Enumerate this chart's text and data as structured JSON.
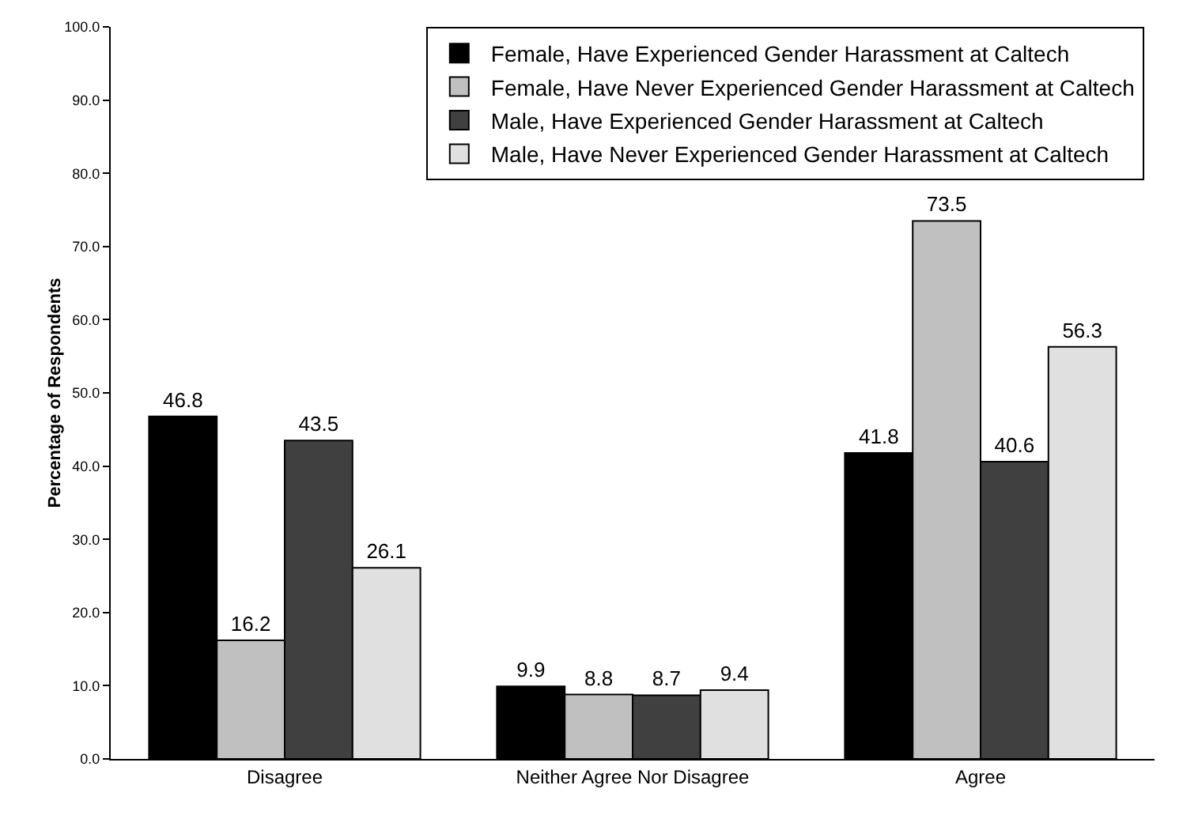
{
  "chart_data": {
    "type": "bar",
    "ylabel": "Percentage of Respondents",
    "categories": [
      "Disagree",
      "Neither Agree Nor Disagree",
      "Agree"
    ],
    "series": [
      {
        "name": "Female, Have Experienced Gender Harassment at Caltech",
        "color": "#000000",
        "values": [
          46.8,
          9.9,
          41.8
        ]
      },
      {
        "name": "Female, Have Never Experienced Gender Harassment at Caltech",
        "color": "#c0c0c0",
        "values": [
          16.2,
          8.8,
          73.5
        ]
      },
      {
        "name": "Male, Have Experienced Gender Harassment at Caltech",
        "color": "#404040",
        "values": [
          43.5,
          8.7,
          40.6
        ]
      },
      {
        "name": "Male, Have Never Experienced Gender Harassment at Caltech",
        "color": "#e0e0e0",
        "values": [
          26.1,
          9.4,
          56.3
        ]
      }
    ],
    "ylim": [
      0,
      100
    ],
    "yticks": [
      {
        "value": 0,
        "label": "0.0"
      },
      {
        "value": 10,
        "label": "10.0"
      },
      {
        "value": 20,
        "label": "20.0"
      },
      {
        "value": 30,
        "label": "30.0"
      },
      {
        "value": 40,
        "label": "40.0"
      },
      {
        "value": 50,
        "label": "50.0"
      },
      {
        "value": 60,
        "label": "60.0"
      },
      {
        "value": 70,
        "label": "70.0"
      },
      {
        "value": 80,
        "label": "80.0"
      },
      {
        "value": 90,
        "label": "90.0"
      },
      {
        "value": 100,
        "label": "100.0"
      }
    ],
    "grid": false,
    "legend": "top right",
    "data_labels": true
  }
}
